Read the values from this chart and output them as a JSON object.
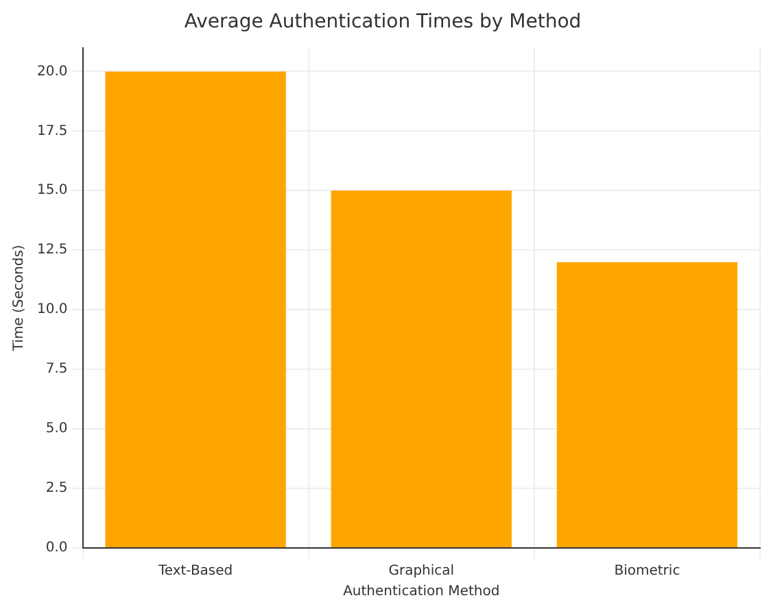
{
  "chart_data": {
    "type": "bar",
    "title": "Average Authentication Times by Method",
    "xlabel": "Authentication Method",
    "ylabel": "Time (Seconds)",
    "categories": [
      "Text-Based",
      "Graphical",
      "Biometric"
    ],
    "values": [
      20,
      15,
      12
    ],
    "color": "#ffa500",
    "ylim": [
      0,
      21
    ],
    "yticks": [
      {
        "value": 0,
        "label": "0.0"
      },
      {
        "value": 2.5,
        "label": "2.5"
      },
      {
        "value": 5,
        "label": "5.0"
      },
      {
        "value": 7.5,
        "label": "7.5"
      },
      {
        "value": 10,
        "label": "10.0"
      },
      {
        "value": 12.5,
        "label": "12.5"
      },
      {
        "value": 15,
        "label": "15.0"
      },
      {
        "value": 17.5,
        "label": "17.5"
      },
      {
        "value": 20,
        "label": "20.0"
      }
    ],
    "grid": true
  }
}
